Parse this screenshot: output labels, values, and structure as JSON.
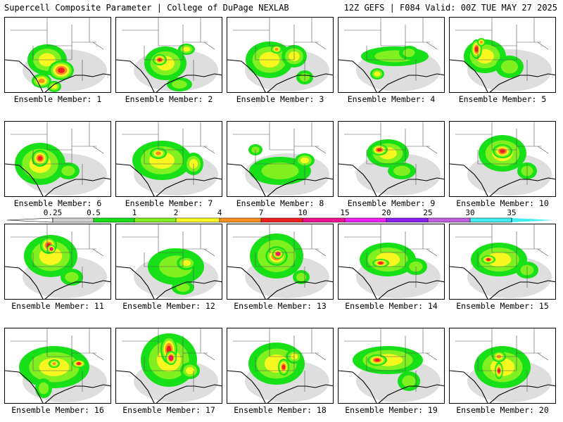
{
  "header": {
    "left": "Supercell Composite Parameter | College of DuPage NEXLAB",
    "right": "12Z GEFS | F084 Valid: 00Z TUE MAY 27 2025"
  },
  "colors": {
    "levels": [
      "#d0d0d0",
      "#18e018",
      "#80f020",
      "#f8f820",
      "#f89020",
      "#f02020",
      "#f01090",
      "#f020f0",
      "#8a20f0",
      "#c060e0",
      "#40f0f0"
    ],
    "bar_left": "#ffffff"
  },
  "legend": {
    "ticks": [
      "0.25",
      "0.5",
      "1",
      "2",
      "4",
      "7",
      "10",
      "15",
      "20",
      "25",
      "30",
      "35"
    ]
  },
  "members": [
    {
      "label": "Ensemble Member: 1",
      "blobs": [
        [
          60,
          60,
          28,
          22,
          3
        ],
        [
          80,
          75,
          18,
          14,
          5
        ],
        [
          52,
          90,
          14,
          10,
          4
        ],
        [
          70,
          98,
          10,
          8,
          3
        ]
      ]
    },
    {
      "label": "Ensemble Member: 2",
      "blobs": [
        [
          70,
          65,
          30,
          24,
          3
        ],
        [
          62,
          60,
          10,
          8,
          5
        ],
        [
          100,
          45,
          12,
          8,
          3
        ],
        [
          90,
          95,
          18,
          10,
          2
        ]
      ]
    },
    {
      "label": "Ensemble Member: 3",
      "blobs": [
        [
          60,
          60,
          34,
          26,
          3
        ],
        [
          95,
          55,
          18,
          16,
          3
        ],
        [
          70,
          45,
          8,
          6,
          4
        ],
        [
          110,
          85,
          12,
          10,
          2
        ]
      ]
    },
    {
      "label": "Ensemble Member: 4",
      "blobs": [
        [
          80,
          55,
          48,
          14,
          2
        ],
        [
          55,
          80,
          10,
          8,
          3
        ],
        [
          100,
          50,
          14,
          10,
          2
        ]
      ]
    },
    {
      "label": "Ensemble Member: 5",
      "blobs": [
        [
          50,
          55,
          30,
          24,
          3
        ],
        [
          38,
          45,
          8,
          14,
          5
        ],
        [
          45,
          35,
          6,
          6,
          4
        ],
        [
          85,
          70,
          20,
          16,
          2
        ]
      ]
    },
    {
      "label": "Ensemble Member: 6",
      "blobs": [
        [
          50,
          60,
          36,
          30,
          3
        ],
        [
          50,
          52,
          12,
          12,
          5
        ],
        [
          90,
          70,
          16,
          12,
          2
        ]
      ]
    },
    {
      "label": "Ensemble Member: 7",
      "blobs": [
        [
          65,
          55,
          42,
          28,
          3
        ],
        [
          110,
          60,
          14,
          16,
          3
        ],
        [
          60,
          45,
          12,
          8,
          4
        ]
      ]
    },
    {
      "label": "Ensemble Member: 8",
      "blobs": [
        [
          75,
          70,
          44,
          20,
          2
        ],
        [
          110,
          55,
          14,
          10,
          3
        ],
        [
          40,
          40,
          10,
          8,
          2
        ]
      ]
    },
    {
      "label": "Ensemble Member: 9",
      "blobs": [
        [
          70,
          45,
          30,
          20,
          3
        ],
        [
          58,
          40,
          12,
          8,
          5
        ],
        [
          90,
          70,
          20,
          12,
          2
        ]
      ]
    },
    {
      "label": "Ensemble Member: 10",
      "blobs": [
        [
          75,
          45,
          34,
          26,
          3
        ],
        [
          75,
          42,
          14,
          10,
          5
        ],
        [
          110,
          70,
          14,
          12,
          2
        ]
      ]
    },
    {
      "label": "Ensemble Member: 11",
      "blobs": [
        [
          65,
          45,
          38,
          30,
          3
        ],
        [
          62,
          30,
          12,
          12,
          5
        ],
        [
          66,
          35,
          6,
          6,
          6
        ],
        [
          95,
          75,
          16,
          12,
          2
        ]
      ]
    },
    {
      "label": "Ensemble Member: 12",
      "blobs": [
        [
          85,
          60,
          40,
          26,
          2
        ],
        [
          100,
          55,
          14,
          10,
          3
        ],
        [
          95,
          90,
          16,
          10,
          2
        ]
      ]
    },
    {
      "label": "Ensemble Member: 13",
      "blobs": [
        [
          70,
          45,
          38,
          32,
          3
        ],
        [
          70,
          45,
          16,
          14,
          5
        ],
        [
          72,
          42,
          8,
          7,
          6
        ],
        [
          105,
          75,
          12,
          10,
          2
        ]
      ]
    },
    {
      "label": "Ensemble Member: 14",
      "blobs": [
        [
          70,
          50,
          40,
          24,
          3
        ],
        [
          60,
          55,
          12,
          6,
          5
        ],
        [
          110,
          60,
          16,
          12,
          2
        ]
      ]
    },
    {
      "label": "Ensemble Member: 15",
      "blobs": [
        [
          70,
          50,
          40,
          24,
          3
        ],
        [
          55,
          50,
          10,
          6,
          5
        ],
        [
          110,
          65,
          16,
          12,
          2
        ]
      ]
    },
    {
      "label": "Ensemble Member: 16",
      "blobs": [
        [
          70,
          55,
          50,
          30,
          3
        ],
        [
          105,
          50,
          10,
          6,
          5
        ],
        [
          70,
          50,
          8,
          6,
          4
        ],
        [
          55,
          85,
          12,
          14,
          2
        ]
      ]
    },
    {
      "label": "Ensemble Member: 17",
      "blobs": [
        [
          75,
          45,
          40,
          38,
          3
        ],
        [
          75,
          30,
          12,
          20,
          5
        ],
        [
          78,
          42,
          8,
          10,
          6
        ],
        [
          105,
          60,
          14,
          12,
          3
        ]
      ]
    },
    {
      "label": "Ensemble Member: 18",
      "blobs": [
        [
          70,
          50,
          40,
          30,
          3
        ],
        [
          80,
          55,
          8,
          12,
          5
        ],
        [
          95,
          40,
          12,
          10,
          3
        ]
      ]
    },
    {
      "label": "Ensemble Member: 19",
      "blobs": [
        [
          70,
          45,
          50,
          20,
          3
        ],
        [
          55,
          45,
          14,
          8,
          5
        ],
        [
          100,
          75,
          16,
          14,
          2
        ]
      ]
    },
    {
      "label": "Ensemble Member: 20",
      "blobs": [
        [
          75,
          55,
          40,
          30,
          3
        ],
        [
          70,
          60,
          6,
          12,
          5
        ],
        [
          70,
          40,
          10,
          8,
          4
        ]
      ]
    }
  ]
}
